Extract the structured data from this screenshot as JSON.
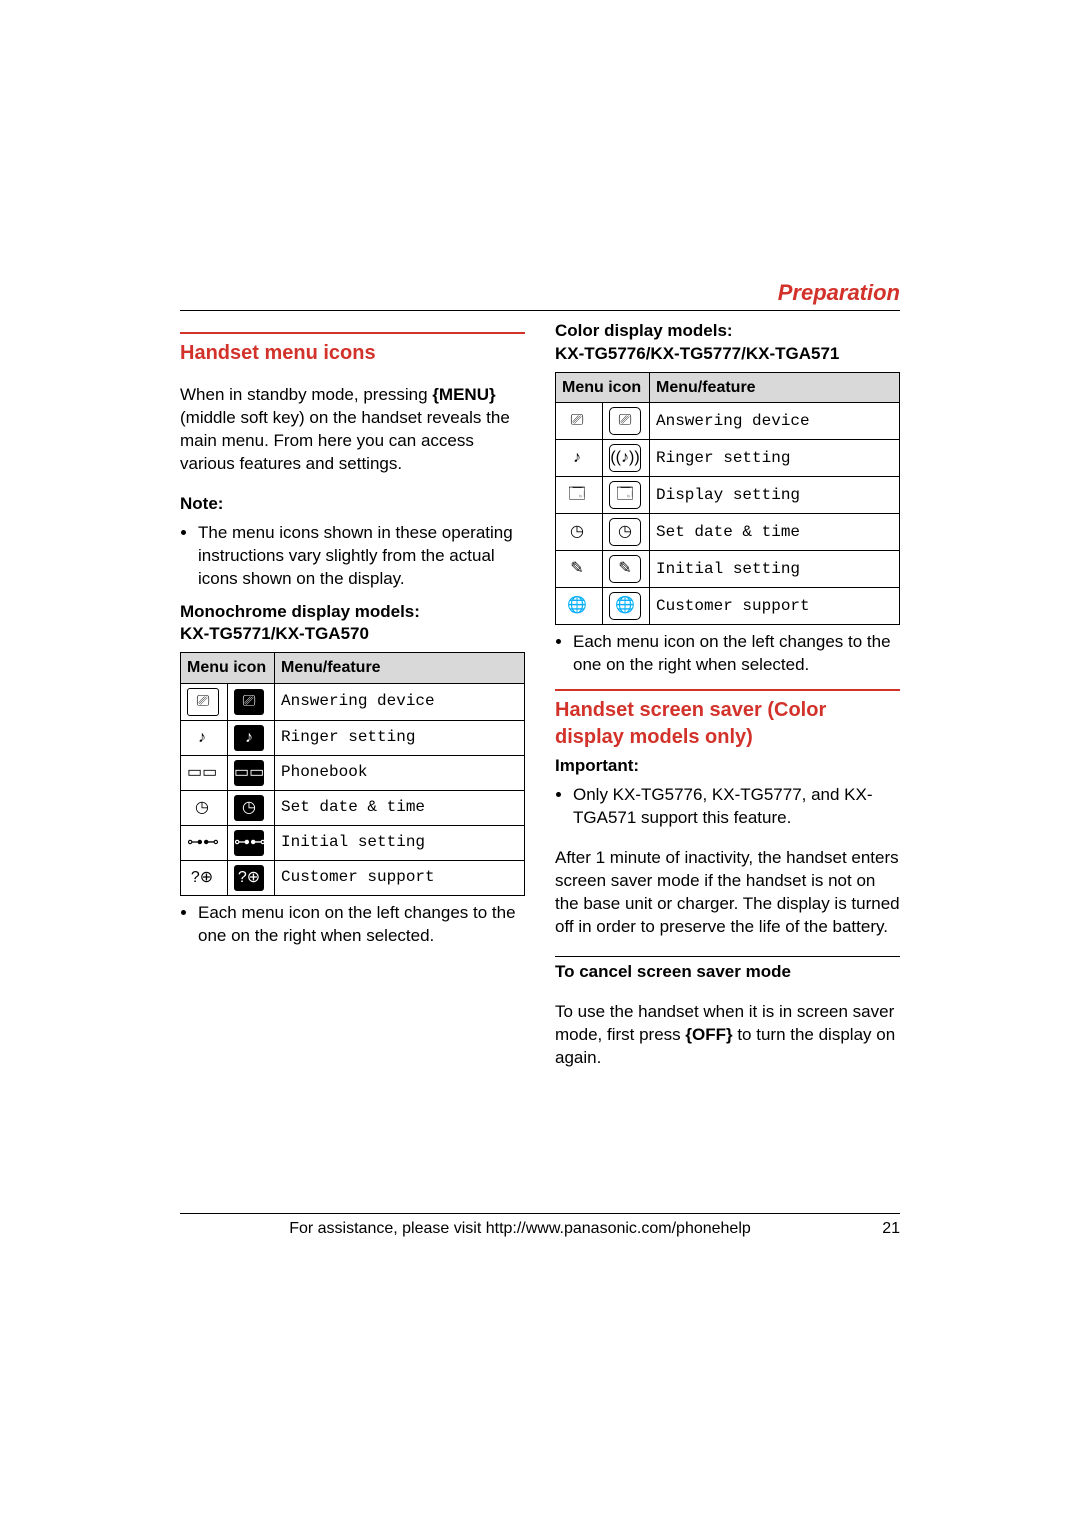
{
  "section_title": "Preparation",
  "left": {
    "heading": "Handset menu icons",
    "intro_a": "When in standby mode, pressing ",
    "intro_key": "{MENU}",
    "intro_b": " (middle soft key) on the handset reveals the main menu. From here you can access various features and settings.",
    "note_label": "Note:",
    "note_item": "The menu icons shown in these operating instructions vary slightly from the actual icons shown on the display.",
    "mono_title_1": "Monochrome display models:",
    "mono_title_2": "KX-TG5771/KX-TGA570",
    "table": {
      "header_icon": "Menu icon",
      "header_feat": "Menu/feature",
      "rows": [
        {
          "g1": "⎚",
          "g2": "⎚",
          "feat": "Answering device"
        },
        {
          "g1": "♪",
          "g2": "♪",
          "feat": "Ringer setting"
        },
        {
          "g1": "▭▭",
          "g2": "▭▭",
          "feat": "Phonebook"
        },
        {
          "g1": "◷",
          "g2": "◷",
          "feat": "Set date & time"
        },
        {
          "g1": "⊶⊷",
          "g2": "⊶⊷",
          "feat": "Initial setting"
        },
        {
          "g1": "?⊕",
          "g2": "?⊕",
          "feat": "Customer support"
        }
      ]
    },
    "foot_item": "Each menu icon on the left changes to the one on the right when selected."
  },
  "right": {
    "color_title_1": "Color display models:",
    "color_title_2": "KX-TG5776/KX-TG5777/KX-TGA571",
    "table": {
      "header_icon": "Menu icon",
      "header_feat": "Menu/feature",
      "rows": [
        {
          "g1": "⎚",
          "g2": "⎚",
          "feat": "Answering device"
        },
        {
          "g1": "♪",
          "g2": "((♪))",
          "feat": "Ringer setting"
        },
        {
          "g1": "🗔",
          "g2": "🗔",
          "feat": "Display setting"
        },
        {
          "g1": "◷",
          "g2": "◷",
          "feat": "Set date & time"
        },
        {
          "g1": "✎",
          "g2": "✎",
          "feat": "Initial setting"
        },
        {
          "g1": "🌐",
          "g2": "🌐",
          "feat": "Customer support"
        }
      ]
    },
    "foot_item": "Each menu icon on the left changes to the one on the right when selected.",
    "h2": "Handset screen saver (Color display models only)",
    "important_label": "Important:",
    "important_item": "Only KX-TG5776, KX-TG5777, and KX-TGA571 support this feature.",
    "para": "After 1 minute of inactivity, the handset enters screen saver mode if the handset is not on the base unit or charger. The display is turned off in order to preserve the life of the battery.",
    "sub_cancel": "To cancel screen saver mode",
    "cancel_a": "To use the handset when it is in screen saver mode, first press ",
    "cancel_key": "{OFF}",
    "cancel_b": " to turn the display on again."
  },
  "footer": {
    "text": "For assistance, please visit http://www.panasonic.com/phonehelp",
    "page": "21"
  },
  "style": {
    "accent": "#d2322a",
    "table_header_bg": "#d9d9d9",
    "body_font_size": 17,
    "mono_font": "Courier New"
  }
}
